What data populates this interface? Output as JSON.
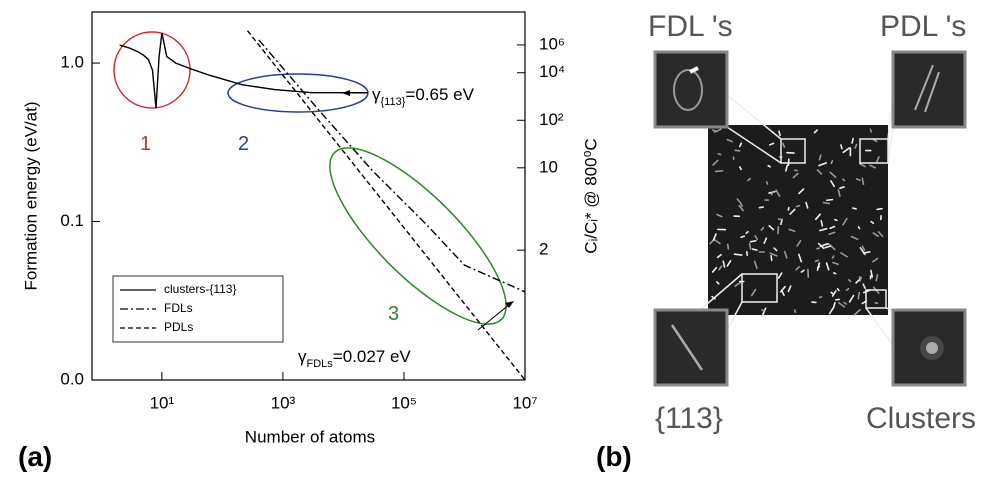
{
  "chart_data": {
    "type": "line",
    "xlabel": "Number of atoms",
    "ylabel": "Formation energy (eV/at)",
    "y2label": "Cᵢ/Cᵢ* @ 800⁰C",
    "xscale": "log",
    "yscale": "log",
    "y2scale": "loglog",
    "xlim": [
      0.7,
      10000000
    ],
    "xticks": [
      {
        "value": 10,
        "label": "10¹"
      },
      {
        "value": 1000,
        "label": "10³"
      },
      {
        "value": 100000,
        "label": "10⁵"
      },
      {
        "value": 10000000,
        "label": "10⁷"
      }
    ],
    "ylim": [
      0.01,
      2.1
    ],
    "yticks": [
      {
        "value": 1,
        "label": "1.0"
      },
      {
        "value": 0.1,
        "label": "0.1"
      },
      {
        "value": 0.01,
        "label": "0.0"
      }
    ],
    "y2lim": [
      1.11,
      5000000000
    ],
    "y2ticks": [
      {
        "value": 1000000,
        "label": "10⁶"
      },
      {
        "value": 10000,
        "label": "10⁴"
      },
      {
        "value": 100,
        "label": "10²"
      },
      10,
      2
    ],
    "legend": "lower left",
    "series": [
      {
        "name": "clusters-{113}",
        "color": "#000000",
        "style": "solid",
        "x": [
          2,
          3,
          4,
          5,
          6,
          7,
          8,
          9,
          10,
          12,
          17,
          30,
          60,
          210,
          730,
          3000,
          25000
        ],
        "values": [
          1.3,
          1.24,
          1.18,
          1.12,
          1.05,
          0.9,
          0.52,
          1.1,
          1.55,
          1.1,
          1.0,
          0.92,
          0.84,
          0.73,
          0.68,
          0.65,
          0.65
        ]
      },
      {
        "name": "FDLs",
        "color": "#000000",
        "style": "dashdot",
        "x": [
          400,
          4000,
          30000,
          240000,
          1000000,
          4000000,
          10000000
        ],
        "values": [
          1.4,
          0.5,
          0.21,
          0.095,
          0.053,
          0.042,
          0.036
        ]
      },
      {
        "name": "PDLs",
        "color": "#000000",
        "style": "dashed",
        "x": [
          260,
          10000000
        ],
        "values": [
          1.6,
          0.01
        ]
      }
    ],
    "annotations": [
      {
        "text": "1",
        "color": "#d42a2a"
      },
      {
        "text": "2",
        "color": "#2a3a9a"
      },
      {
        "text": "3",
        "color": "#2a8a2a"
      },
      {
        "symbol": "γ",
        "subscript": "{113}",
        "text": "=0.65 eV"
      },
      {
        "symbol": "γ",
        "subscript": "FDLs",
        "text": "=0.027 eV"
      }
    ]
  },
  "figure": {
    "panel_labels": [
      "(a)",
      "(b)"
    ],
    "micrograph": {
      "labels": [
        "FDL 's",
        "PDL 's",
        "{113}",
        "Clusters"
      ]
    }
  }
}
